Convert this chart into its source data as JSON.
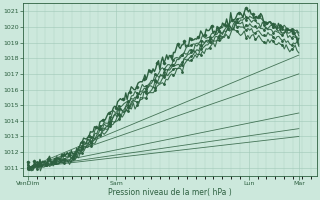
{
  "xlabel": "Pression niveau de la mer( hPa )",
  "ylim": [
    1010.5,
    1021.5
  ],
  "yticks": [
    1011,
    1012,
    1013,
    1014,
    1015,
    1016,
    1017,
    1018,
    1019,
    1020,
    1021
  ],
  "xtick_labels": [
    "VenDim",
    "Sam",
    "Lun",
    "Mar"
  ],
  "xtick_pos": [
    0.0,
    3.0,
    7.5,
    9.2
  ],
  "xlim": [
    -0.15,
    9.8
  ],
  "bg_color": "#cce8dc",
  "grid_color": "#a0c8b8",
  "line_color": "#2d6040",
  "dense_lines": [
    {
      "xpts": [
        0.0,
        1.5,
        3.5,
        5.5,
        7.3,
        7.8,
        9.2
      ],
      "ypts": [
        1011.0,
        1011.8,
        1015.5,
        1018.7,
        1020.7,
        1020.5,
        1019.8
      ]
    },
    {
      "xpts": [
        0.0,
        1.5,
        3.5,
        5.5,
        7.3,
        7.8,
        9.2
      ],
      "ypts": [
        1011.0,
        1011.7,
        1015.3,
        1018.5,
        1020.5,
        1020.3,
        1019.5
      ]
    },
    {
      "xpts": [
        0.0,
        1.5,
        3.5,
        5.5,
        7.2,
        7.7,
        9.2
      ],
      "ypts": [
        1011.0,
        1011.6,
        1015.2,
        1018.3,
        1020.3,
        1020.1,
        1019.2
      ]
    },
    {
      "xpts": [
        0.0,
        1.5,
        3.5,
        5.5,
        7.0,
        7.5,
        9.2
      ],
      "ypts": [
        1011.0,
        1011.5,
        1015.0,
        1018.1,
        1020.0,
        1019.8,
        1018.8
      ]
    },
    {
      "xpts": [
        0.0,
        1.5,
        3.5,
        5.5,
        7.0,
        7.5,
        9.2
      ],
      "ypts": [
        1011.0,
        1011.4,
        1014.8,
        1017.9,
        1019.7,
        1019.5,
        1018.5
      ]
    }
  ],
  "fan_lines": [
    {
      "xpts": [
        0.0,
        9.2
      ],
      "ypts": [
        1011.0,
        1018.2
      ]
    },
    {
      "xpts": [
        0.0,
        9.2
      ],
      "ypts": [
        1011.0,
        1017.0
      ]
    },
    {
      "xpts": [
        0.0,
        9.2
      ],
      "ypts": [
        1011.0,
        1014.5
      ]
    },
    {
      "xpts": [
        0.0,
        9.2
      ],
      "ypts": [
        1011.0,
        1013.5
      ]
    },
    {
      "xpts": [
        0.0,
        9.2
      ],
      "ypts": [
        1011.0,
        1013.0
      ]
    }
  ],
  "noise_seed": 7,
  "noise_amp": 0.12,
  "marker_step": 5
}
